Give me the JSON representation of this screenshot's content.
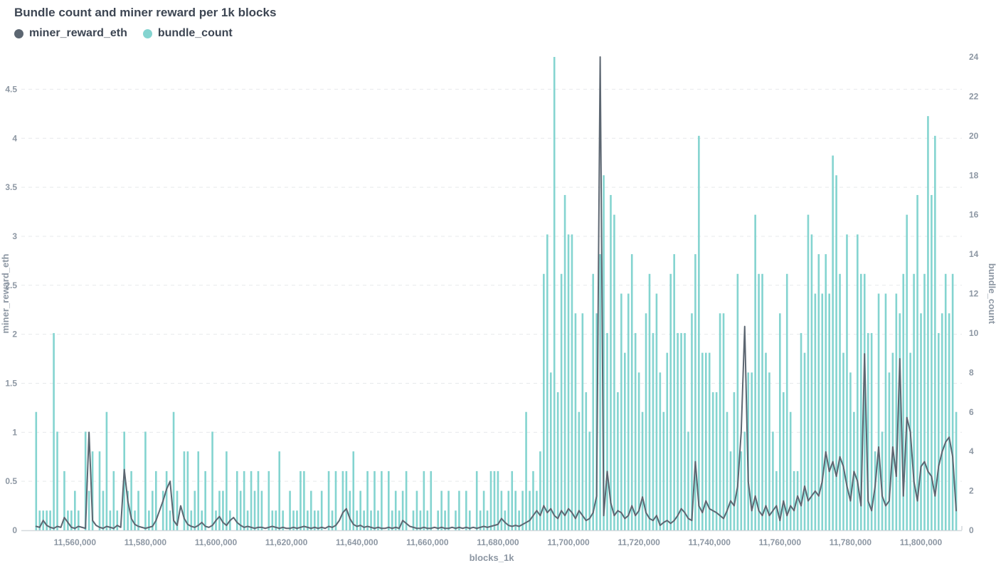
{
  "title": "Bundle count and miner reward per 1k blocks",
  "legend": [
    {
      "label": "miner_reward_eth",
      "color": "#5c6671"
    },
    {
      "label": "bundle_count",
      "color": "#84d4d0"
    }
  ],
  "colors": {
    "background": "#ffffff",
    "bar": "#84d4d0",
    "line": "#5c6671",
    "grid": "#e7e9eb",
    "axis_line": "#d4d9dd",
    "tick_text": "#8d97a3",
    "title_text": "#3d4653"
  },
  "chart_data": {
    "type": "bar",
    "title": "Bundle count and miner reward per 1k blocks",
    "xlabel": "blocks_1k",
    "x_domain": [
      11544800,
      11811600
    ],
    "x_start": 11549000,
    "x_step": 1000,
    "x_ticks": [
      {
        "value": 11560000,
        "label": "11,560,000"
      },
      {
        "value": 11580000,
        "label": "11,580,000"
      },
      {
        "value": 11600000,
        "label": "11,600,000"
      },
      {
        "value": 11620000,
        "label": "11,620,000"
      },
      {
        "value": 11640000,
        "label": "11,640,000"
      },
      {
        "value": 11660000,
        "label": "11,660,000"
      },
      {
        "value": 11680000,
        "label": "11,680,000"
      },
      {
        "value": 11700000,
        "label": "11,700,000"
      },
      {
        "value": 11720000,
        "label": "11,720,000"
      },
      {
        "value": 11740000,
        "label": "11,740,000"
      },
      {
        "value": 11760000,
        "label": "11,760,000"
      },
      {
        "value": 11780000,
        "label": "11,780,000"
      },
      {
        "value": 11800000,
        "label": "11,800,000"
      }
    ],
    "left_axis": {
      "title": "miner_reward_eth",
      "max": 4.83,
      "ticks": [
        0,
        0.5,
        1,
        1.5,
        2,
        2.5,
        3,
        3.5,
        4,
        4.5
      ],
      "tick_labels": [
        "0",
        "0.5",
        "1",
        "1.5",
        "2",
        "2.5",
        "3",
        "3.5",
        "4",
        "4.5"
      ]
    },
    "right_axis": {
      "title": "bundle_count",
      "max": 24,
      "ticks": [
        0,
        2,
        4,
        6,
        8,
        10,
        12,
        14,
        16,
        18,
        20,
        22,
        24
      ],
      "tick_labels": [
        "0",
        "2",
        "4",
        "6",
        "8",
        "10",
        "12",
        "14",
        "16",
        "18",
        "20",
        "22",
        "24"
      ]
    },
    "legend_position": "top-left",
    "grid": "horizontal-dashed",
    "series": [
      {
        "name": "bundle_count",
        "type": "bar",
        "axis": "right",
        "color": "#84d4d0",
        "values": [
          6,
          1,
          1,
          1,
          1,
          10,
          5,
          0,
          3,
          1,
          1,
          2,
          1,
          0,
          5,
          2,
          4,
          0,
          4,
          2,
          6,
          1,
          3,
          1,
          0,
          5,
          2,
          3,
          1,
          2,
          0,
          5,
          1,
          2,
          3,
          0,
          2,
          3,
          1,
          6,
          2,
          0,
          4,
          4,
          1,
          2,
          4,
          1,
          3,
          0,
          5,
          1,
          2,
          2,
          4,
          1,
          0,
          3,
          2,
          3,
          1,
          3,
          2,
          3,
          2,
          0,
          3,
          1,
          1,
          4,
          1,
          0,
          2,
          1,
          1,
          3,
          3,
          1,
          2,
          1,
          1,
          2,
          0,
          3,
          1,
          3,
          0,
          3,
          3,
          2,
          4,
          1,
          2,
          1,
          3,
          1,
          3,
          1,
          3,
          0,
          3,
          1,
          2,
          1,
          2,
          3,
          0,
          1,
          2,
          1,
          3,
          1,
          3,
          0,
          1,
          2,
          1,
          2,
          0,
          1,
          2,
          0,
          2,
          1,
          0,
          3,
          1,
          2,
          1,
          3,
          3,
          3,
          2,
          1,
          2,
          3,
          2,
          1,
          2,
          6,
          2,
          3,
          2,
          4,
          13,
          15,
          8,
          24,
          7,
          13,
          17,
          15,
          15,
          11,
          6,
          11,
          7,
          5,
          13,
          11,
          14,
          18,
          10,
          17,
          16,
          7,
          12,
          9,
          12,
          14,
          10,
          8,
          6,
          11,
          13,
          10,
          12,
          8,
          6,
          9,
          13,
          14,
          10,
          10,
          10,
          5,
          11,
          14,
          20,
          9,
          9,
          9,
          7,
          7,
          11,
          11,
          6,
          4,
          7,
          13,
          4,
          5,
          8,
          8,
          16,
          13,
          13,
          9,
          8,
          5,
          3,
          11,
          7,
          13,
          6,
          3,
          3,
          10,
          9,
          16,
          15,
          12,
          14,
          12,
          14,
          12,
          19,
          18,
          13,
          9,
          15,
          8,
          6,
          15,
          13,
          13,
          10,
          10,
          4,
          12,
          5,
          12,
          8,
          9,
          12,
          11,
          13,
          16,
          9,
          13,
          17,
          11,
          13,
          21,
          17,
          20,
          10,
          11,
          13,
          11,
          13,
          6
        ]
      },
      {
        "name": "miner_reward_eth",
        "type": "line",
        "axis": "left",
        "color": "#5c6671",
        "values": [
          0.04,
          0.03,
          0.1,
          0.05,
          0.03,
          0.02,
          0.04,
          0.03,
          0.13,
          0.08,
          0.03,
          0.02,
          0.04,
          0.03,
          0.02,
          1.0,
          0.1,
          0.05,
          0.03,
          0.02,
          0.04,
          0.03,
          0.02,
          0.05,
          0.03,
          0.62,
          0.3,
          0.12,
          0.06,
          0.04,
          0.03,
          0.02,
          0.03,
          0.04,
          0.1,
          0.2,
          0.3,
          0.42,
          0.5,
          0.1,
          0.05,
          0.25,
          0.12,
          0.06,
          0.04,
          0.03,
          0.05,
          0.08,
          0.04,
          0.03,
          0.05,
          0.1,
          0.14,
          0.08,
          0.05,
          0.1,
          0.13,
          0.08,
          0.05,
          0.03,
          0.04,
          0.03,
          0.02,
          0.03,
          0.03,
          0.02,
          0.03,
          0.04,
          0.03,
          0.02,
          0.03,
          0.02,
          0.02,
          0.03,
          0.02,
          0.03,
          0.04,
          0.03,
          0.02,
          0.03,
          0.02,
          0.03,
          0.02,
          0.04,
          0.03,
          0.05,
          0.1,
          0.18,
          0.22,
          0.12,
          0.06,
          0.04,
          0.05,
          0.03,
          0.04,
          0.03,
          0.02,
          0.03,
          0.02,
          0.02,
          0.03,
          0.02,
          0.03,
          0.02,
          0.1,
          0.07,
          0.04,
          0.03,
          0.02,
          0.02,
          0.03,
          0.02,
          0.02,
          0.03,
          0.02,
          0.03,
          0.02,
          0.02,
          0.03,
          0.02,
          0.03,
          0.02,
          0.03,
          0.02,
          0.03,
          0.02,
          0.03,
          0.04,
          0.03,
          0.04,
          0.05,
          0.06,
          0.12,
          0.08,
          0.05,
          0.04,
          0.05,
          0.04,
          0.06,
          0.08,
          0.1,
          0.15,
          0.2,
          0.15,
          0.25,
          0.18,
          0.22,
          0.15,
          0.12,
          0.2,
          0.15,
          0.22,
          0.18,
          0.12,
          0.2,
          0.15,
          0.1,
          0.12,
          0.18,
          0.35,
          4.83,
          0.15,
          0.6,
          0.28,
          0.15,
          0.2,
          0.18,
          0.12,
          0.15,
          0.25,
          0.15,
          0.2,
          0.34,
          0.18,
          0.12,
          0.1,
          0.15,
          0.05,
          0.08,
          0.1,
          0.07,
          0.1,
          0.15,
          0.22,
          0.18,
          0.12,
          0.1,
          0.7,
          0.25,
          0.18,
          0.3,
          0.22,
          0.2,
          0.18,
          0.15,
          0.12,
          0.2,
          0.3,
          0.25,
          0.45,
          1.0,
          2.08,
          0.5,
          0.2,
          0.35,
          0.2,
          0.15,
          0.25,
          0.15,
          0.2,
          0.25,
          0.1,
          0.3,
          0.15,
          0.25,
          0.2,
          0.35,
          0.25,
          0.45,
          0.3,
          0.35,
          0.4,
          0.35,
          0.5,
          0.8,
          0.6,
          0.7,
          0.55,
          0.75,
          0.65,
          0.45,
          0.3,
          0.6,
          0.5,
          0.25,
          1.8,
          0.3,
          0.2,
          0.45,
          0.85,
          0.35,
          0.25,
          0.3,
          0.85,
          0.55,
          1.75,
          0.35,
          1.15,
          1.0,
          0.5,
          0.3,
          0.65,
          0.7,
          0.6,
          0.55,
          0.35,
          0.65,
          0.8,
          0.9,
          0.95,
          0.75,
          0.2
        ]
      }
    ]
  }
}
